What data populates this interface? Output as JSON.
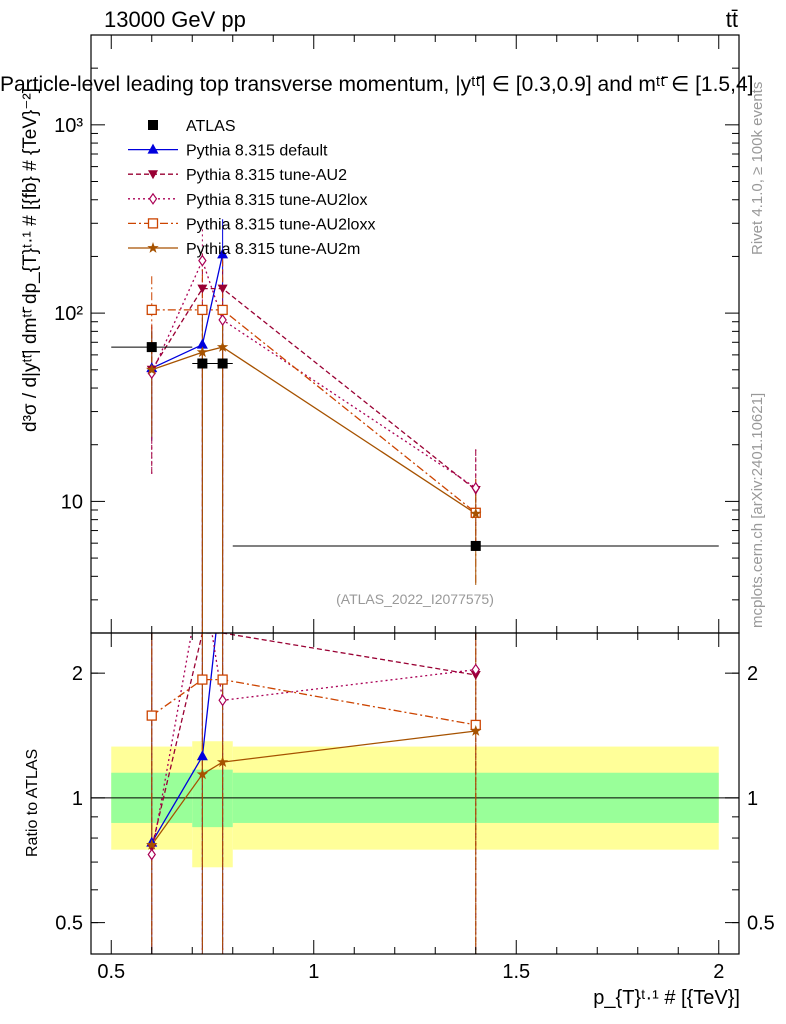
{
  "header": {
    "energy_label": "13000 GeV pp",
    "process_label": "tt̄",
    "title": "Particle-level leading top transverse momentum, |yᵗᵗ̄| ∈ [0.3,0.9] and mᵗᵗ̄ ∈ [1.5,4]",
    "analysis_id": "(ATLAS_2022_I2077575)",
    "side_label_rivet": "Rivet 4.1.0, ≥ 100k events",
    "side_label_mcplots": "mcplots.cern.ch [arXiv:2401.10621]"
  },
  "colors": {
    "atlas": "#000000",
    "default": "#0000dd",
    "au2": "#990033",
    "au2lox": "#aa0055",
    "au2loxx": "#cc4400",
    "au2m": "#a65200",
    "band_inner": "#99ff99",
    "band_outer": "#ffff99"
  },
  "chart_data": [
    {
      "type": "line",
      "panel": "main",
      "title": "Particle-level leading top transverse momentum, |yᵗᵗ̄| ∈ [0.3,0.9] and mᵗᵗ̄ ∈ [1.5,4]",
      "ylabel": "d³σ / d|yᵗᵗ̄| dmᵗᵗ̄ dp_{T}ᵗ·¹ # [{fb} # {TeV}⁻²]",
      "yscale": "log",
      "xlim": [
        0.45,
        2.05
      ],
      "ylim": [
        2,
        3000
      ],
      "y_ticks": [
        {
          "v": 10,
          "label": "10"
        },
        {
          "v": 100,
          "label": "10²"
        },
        {
          "v": 1000,
          "label": "10³"
        }
      ],
      "x": [
        0.6,
        0.725,
        0.775,
        1.4
      ],
      "data": {
        "name": "ATLAS",
        "y": [
          66,
          54,
          54,
          5.8
        ],
        "xerr": [
          [
            0.5,
            0.7
          ],
          [
            0.7,
            0.75
          ],
          [
            0.75,
            0.8
          ],
          [
            0.8,
            2.0
          ]
        ]
      },
      "series": [
        {
          "name": "Pythia 8.315 default",
          "key": "default",
          "marker": "triangle-up",
          "dash": "",
          "y": [
            51,
            68,
            205,
            null
          ],
          "err_lo": [
            30,
            68,
            205,
            null
          ],
          "err_hi": [
            30,
            0,
            110,
            null
          ]
        },
        {
          "name": "Pythia 8.315 tune-AU2",
          "key": "au2",
          "marker": "triangle-down",
          "dash": "5,3",
          "y": [
            50,
            135,
            135,
            11.5
          ],
          "err_lo": [
            36,
            135,
            135,
            6
          ],
          "err_hi": [
            40,
            80,
            80,
            7.5
          ]
        },
        {
          "name": "Pythia 8.315 tune-AU2lox",
          "key": "au2lox",
          "marker": "diamond-open",
          "dash": "2,3",
          "y": [
            48,
            190,
            92,
            11.8
          ],
          "err_lo": [
            34,
            190,
            92,
            6
          ],
          "err_hi": [
            40,
            90,
            45,
            7
          ]
        },
        {
          "name": "Pythia 8.315 tune-AU2loxx",
          "key": "au2loxx",
          "marker": "square-open",
          "dash": "8,3,2,3",
          "y": [
            104,
            104,
            104,
            8.7
          ],
          "err_lo": [
            60,
            104,
            104,
            5
          ],
          "err_hi": [
            55,
            100,
            100,
            4.5
          ]
        },
        {
          "name": "Pythia 8.315 tune-AU2m",
          "key": "au2m",
          "marker": "star",
          "dash": "",
          "y": [
            50,
            62,
            66,
            8.6
          ],
          "err_lo": [
            28,
            62,
            66,
            5
          ],
          "err_hi": [
            30,
            38,
            38,
            4
          ]
        }
      ],
      "legend": "top-left"
    },
    {
      "type": "line",
      "panel": "ratio",
      "ylabel": "Ratio to ATLAS",
      "xlabel": "p_{T}ᵗ·¹ # [{TeV}]",
      "yscale": "log",
      "xlim": [
        0.45,
        2.05
      ],
      "ylim": [
        0.42,
        2.5
      ],
      "y_ticks": [
        {
          "v": 0.5,
          "label": "0.5"
        },
        {
          "v": 1,
          "label": "1"
        },
        {
          "v": 2,
          "label": "2"
        }
      ],
      "x_ticks": [
        {
          "v": 0.5,
          "label": "0.5"
        },
        {
          "v": 1,
          "label": "1"
        },
        {
          "v": 1.5,
          "label": "1.5"
        },
        {
          "v": 2,
          "label": "2"
        }
      ],
      "band_inner": [
        [
          0.5,
          0.7,
          0.87,
          1.15
        ],
        [
          0.7,
          0.8,
          0.85,
          1.17
        ],
        [
          0.8,
          2.0,
          0.87,
          1.15
        ]
      ],
      "band_outer": [
        [
          0.5,
          0.7,
          0.75,
          1.33
        ],
        [
          0.7,
          0.8,
          0.68,
          1.37
        ],
        [
          0.8,
          2.0,
          0.75,
          1.33
        ]
      ],
      "reference": 1,
      "series": [
        {
          "key": "default",
          "marker": "triangle-up",
          "dash": "",
          "y": [
            0.78,
            1.26,
            3.5,
            null
          ]
        },
        {
          "key": "au2",
          "marker": "triangle-down",
          "dash": "5,3",
          "y": [
            0.76,
            2.5,
            2.5,
            1.98
          ]
        },
        {
          "key": "au2lox",
          "marker": "diamond-open",
          "dash": "2,3",
          "y": [
            0.73,
            3.5,
            1.72,
            2.04
          ]
        },
        {
          "key": "au2loxx",
          "marker": "square-open",
          "dash": "8,3,2,3",
          "y": [
            1.58,
            1.93,
            1.93,
            1.5
          ]
        },
        {
          "key": "au2m",
          "marker": "star",
          "dash": "",
          "y": [
            0.77,
            1.14,
            1.22,
            1.45
          ]
        }
      ]
    }
  ]
}
